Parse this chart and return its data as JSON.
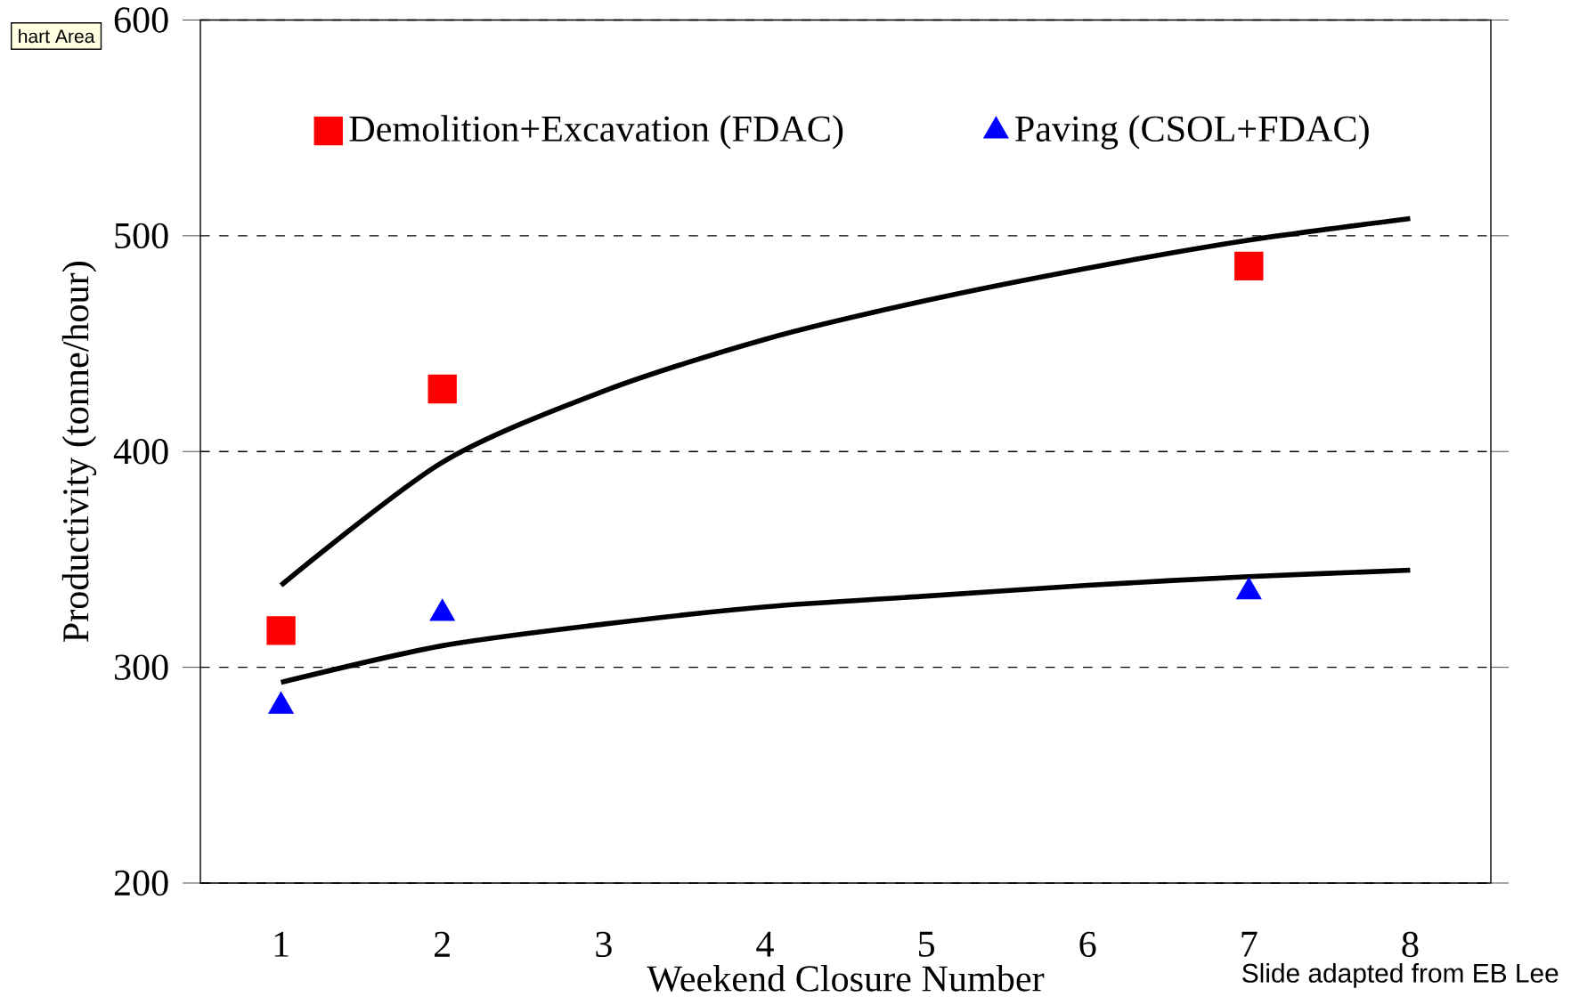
{
  "chart_data": {
    "type": "scatter",
    "xlabel": "Weekend Closure Number",
    "ylabel": "Productivity (tonne/hour)",
    "categories": [
      "1",
      "2",
      "3",
      "4",
      "5",
      "6",
      "7",
      "8"
    ],
    "ylim": [
      200,
      600
    ],
    "yticks": [
      200,
      300,
      400,
      500,
      600
    ],
    "grid": "y",
    "legend": "top",
    "series": [
      {
        "name": "Demolition+Excavation (FDAC)",
        "marker": "square",
        "color": "#ff0000",
        "values": [
          317,
          429,
          null,
          null,
          null,
          null,
          486,
          null
        ]
      },
      {
        "name": "Paving (CSOL+FDAC)",
        "marker": "triangle",
        "color": "#0000ff",
        "values": [
          282,
          325,
          null,
          null,
          null,
          null,
          335,
          null
        ]
      },
      {
        "type": "line",
        "marker": "none",
        "color": "#000000",
        "values": [
          338,
          395,
          428,
          452,
          470,
          485,
          498,
          508
        ]
      },
      {
        "type": "line",
        "marker": "none",
        "color": "#000000",
        "values": [
          293,
          310,
          320,
          328,
          333,
          338,
          342,
          345
        ]
      }
    ],
    "annotations": [
      "hart Area",
      "Slide adapted from EB Lee"
    ]
  }
}
